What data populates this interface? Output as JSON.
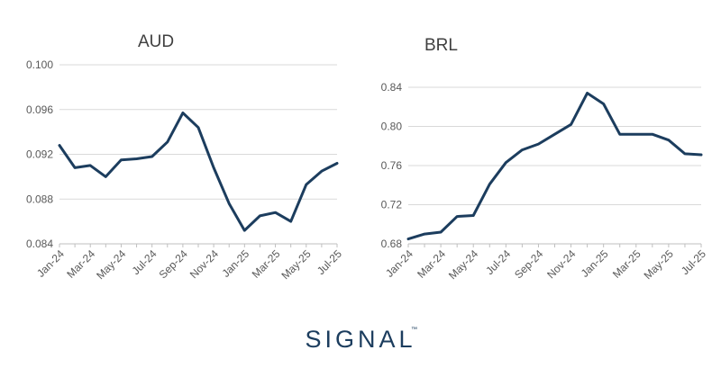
{
  "brand": {
    "logo_text": "SIGNAL",
    "tm": "™",
    "color": "#1c3d5e"
  },
  "style": {
    "line_color": "#1c3d5e",
    "grid_color": "#d9d9d9",
    "axis_color": "#bfbfbf",
    "tick_color": "#595959",
    "title_color": "#404040"
  },
  "chart_data": [
    {
      "type": "line",
      "title": "AUD",
      "x": [
        "Jan-24",
        "Feb-24",
        "Mar-24",
        "Apr-24",
        "May-24",
        "Jun-24",
        "Jul-24",
        "Aug-24",
        "Sep-24",
        "Oct-24",
        "Nov-24",
        "Dec-24",
        "Jan-25",
        "Feb-25",
        "Mar-25",
        "Apr-25",
        "May-25",
        "Jun-25",
        "Jul-25"
      ],
      "x_tick_labels": [
        "Jan-24",
        "Mar-24",
        "May-24",
        "Jul-24",
        "Sep-24",
        "Nov-24",
        "Jan-25",
        "Mar-25",
        "May-25",
        "Jul-25"
      ],
      "series": [
        {
          "values": [
            0.0928,
            0.0908,
            0.091,
            0.09,
            0.0915,
            0.0916,
            0.0918,
            0.0931,
            0.0957,
            0.0944,
            0.0908,
            0.0876,
            0.0852,
            0.0865,
            0.0868,
            0.086,
            0.0893,
            0.0905,
            0.0912
          ]
        }
      ],
      "ylim": [
        0.084,
        0.1
      ],
      "y_ticks": [
        "0.100",
        "0.096",
        "0.092",
        "0.088",
        "0.084"
      ],
      "y_tick_values": [
        0.1,
        0.096,
        0.092,
        0.088,
        0.084
      ],
      "grid": true
    },
    {
      "type": "line",
      "title": "BRL",
      "x": [
        "Jan-24",
        "Feb-24",
        "Mar-24",
        "Apr-24",
        "May-24",
        "Jun-24",
        "Jul-24",
        "Aug-24",
        "Sep-24",
        "Oct-24",
        "Nov-24",
        "Dec-24",
        "Jan-25",
        "Feb-25",
        "Mar-25",
        "Apr-25",
        "May-25",
        "Jun-25",
        "Jul-25"
      ],
      "x_tick_labels": [
        "Jan-24",
        "Mar-24",
        "May-24",
        "Jul-24",
        "Sep-24",
        "Nov-24",
        "Jan-25",
        "Mar-25",
        "May-25",
        "Jul-25"
      ],
      "series": [
        {
          "values": [
            0.685,
            0.69,
            0.692,
            0.708,
            0.709,
            0.741,
            0.763,
            0.776,
            0.782,
            0.792,
            0.802,
            0.834,
            0.823,
            0.792,
            0.792,
            0.792,
            0.786,
            0.772,
            0.771
          ]
        }
      ],
      "ylim": [
        0.68,
        0.84
      ],
      "y_ticks": [
        "0.84",
        "0.80",
        "0.76",
        "0.72",
        "0.68"
      ],
      "y_tick_values": [
        0.84,
        0.8,
        0.76,
        0.72,
        0.68
      ],
      "grid": true
    }
  ]
}
